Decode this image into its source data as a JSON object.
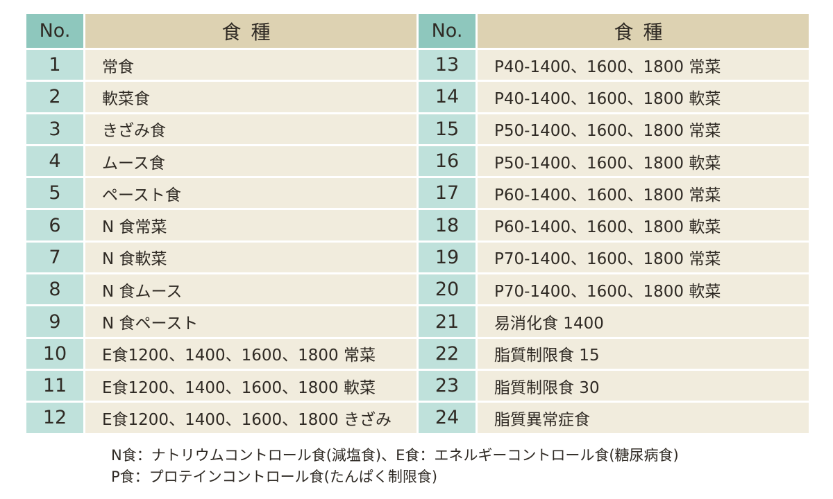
{
  "header": {
    "no_label": "No.",
    "type_label": "食種"
  },
  "left_rows": [
    {
      "no": "1",
      "name": "常食"
    },
    {
      "no": "2",
      "name": "軟菜食"
    },
    {
      "no": "3",
      "name": "きざみ食"
    },
    {
      "no": "4",
      "name": "ムース食"
    },
    {
      "no": "5",
      "name": "ペースト食"
    },
    {
      "no": "6",
      "name": "N 食常菜"
    },
    {
      "no": "7",
      "name": "N 食軟菜"
    },
    {
      "no": "8",
      "name": "N 食ムース"
    },
    {
      "no": "9",
      "name": "N 食ペースト"
    },
    {
      "no": "10",
      "name": "E食1200、1400、1600、1800 常菜"
    },
    {
      "no": "11",
      "name": "E食1200、1400、1600、1800 軟菜"
    },
    {
      "no": "12",
      "name": "E食1200、1400、1600、1800 きざみ"
    }
  ],
  "right_rows": [
    {
      "no": "13",
      "name": "P40-1400、1600、1800 常菜"
    },
    {
      "no": "14",
      "name": "P40-1400、1600、1800 軟菜"
    },
    {
      "no": "15",
      "name": "P50-1400、1600、1800 常菜"
    },
    {
      "no": "16",
      "name": "P50-1400、1600、1800 軟菜"
    },
    {
      "no": "17",
      "name": "P60-1400、1600、1800 常菜"
    },
    {
      "no": "18",
      "name": "P60-1400、1600、1800 軟菜"
    },
    {
      "no": "19",
      "name": "P70-1400、1600、1800 常菜"
    },
    {
      "no": "20",
      "name": "P70-1400、1600、1800 軟菜"
    },
    {
      "no": "21",
      "name": "易消化食 1400"
    },
    {
      "no": "22",
      "name": "脂質制限食 15"
    },
    {
      "no": "23",
      "name": "脂質制限食 30"
    },
    {
      "no": "24",
      "name": "脂質異常症食"
    }
  ],
  "notes": [
    "N食：ナトリウムコントロール食(減塩食)、E食：エネルギーコントロール食(糖尿病食)",
    "P食：プロテインコントロール食(たんぱく制限食)"
  ],
  "colors": {
    "header_no_bg": "#8ec7bd",
    "header_type_bg": "#ddd2b2",
    "number_cell_bg": "#bfe1db",
    "name_cell_bg": "#f1ecdd"
  }
}
